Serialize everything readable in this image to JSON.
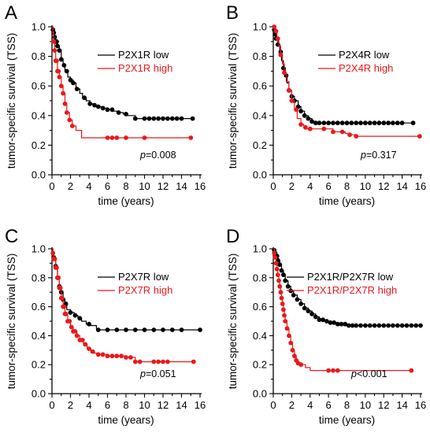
{
  "colors": {
    "low": "#000000",
    "high": "#e8191c"
  },
  "chart_data": [
    {
      "type": "line",
      "panel": "A",
      "xlabel": "time (years)",
      "ylabel": "tumor-specific survival (TSS)",
      "xlim": [
        0,
        16
      ],
      "ylim": [
        0,
        1
      ],
      "xticks": [
        "0",
        "2",
        "4",
        "6",
        "8",
        "10",
        "12",
        "14",
        "16"
      ],
      "yticks": [
        "0.0",
        "0.2",
        "0.4",
        "0.6",
        "0.8",
        "1.0"
      ],
      "annotation": {
        "p_label": "p",
        "p_value": "=0.008"
      },
      "legend_position": "top-right",
      "series": [
        {
          "name": "P2X1R low",
          "color": "#000000",
          "x": [
            0,
            0.1,
            0.2,
            0.3,
            0.4,
            0.6,
            0.8,
            1.0,
            1.2,
            1.4,
            1.7,
            2.0,
            2.3,
            2.6,
            3.0,
            3.3,
            3.7,
            4.1,
            4.5,
            5.0,
            5.5,
            6.0,
            6.6,
            7.2,
            7.7,
            8.2,
            9.0,
            10,
            11,
            12,
            13,
            14,
            15.2
          ],
          "y": [
            1.0,
            0.98,
            0.96,
            0.93,
            0.9,
            0.87,
            0.84,
            0.78,
            0.74,
            0.7,
            0.66,
            0.64,
            0.62,
            0.58,
            0.55,
            0.52,
            0.5,
            0.48,
            0.47,
            0.46,
            0.45,
            0.44,
            0.43,
            0.42,
            0.41,
            0.4,
            0.38,
            0.38,
            0.38,
            0.38,
            0.38,
            0.38,
            0.38
          ],
          "markers": [
            0.1,
            0.2,
            0.3,
            0.4,
            0.5,
            0.6,
            0.8,
            1.0,
            1.3,
            1.6,
            2.0,
            2.3,
            2.7,
            3.5,
            4.1,
            4.6,
            5.0,
            5.5,
            6.0,
            6.5,
            7.2,
            8.0,
            9.0,
            10,
            10.5,
            11,
            11.5,
            12,
            12.5,
            13,
            13.5,
            14,
            15.2
          ]
        },
        {
          "name": "P2X1R high",
          "color": "#e8191c",
          "x": [
            0,
            0.1,
            0.2,
            0.3,
            0.4,
            0.6,
            0.8,
            1.0,
            1.2,
            1.4,
            1.6,
            1.9,
            2.2,
            2.6,
            3.2,
            6.0,
            6.5,
            15
          ],
          "y": [
            1.0,
            0.96,
            0.9,
            0.84,
            0.77,
            0.7,
            0.66,
            0.6,
            0.55,
            0.48,
            0.42,
            0.37,
            0.33,
            0.3,
            0.25,
            0.25,
            0.25,
            0.25
          ],
          "markers": [
            0.2,
            0.3,
            0.4,
            0.5,
            0.6,
            0.7,
            0.8,
            1.0,
            1.2,
            1.4,
            1.6,
            1.9,
            2.2,
            6.0,
            6.5,
            7.0,
            8.0,
            10,
            15
          ]
        }
      ]
    },
    {
      "type": "line",
      "panel": "B",
      "xlabel": "time (years)",
      "ylabel": "tumor-specific survival (TSS)",
      "xlim": [
        0,
        16
      ],
      "ylim": [
        0,
        1
      ],
      "xticks": [
        "0",
        "2",
        "4",
        "6",
        "8",
        "10",
        "12",
        "14",
        "16"
      ],
      "yticks": [
        "0.0",
        "0.2",
        "0.4",
        "0.6",
        "0.8",
        "1.0"
      ],
      "annotation": {
        "p_label": "p",
        "p_value": "=0.317"
      },
      "legend_position": "top-right",
      "series": [
        {
          "name": "P2X4R low",
          "color": "#000000",
          "x": [
            0,
            0.1,
            0.2,
            0.3,
            0.5,
            0.7,
            0.9,
            1.1,
            1.3,
            1.5,
            1.7,
            2.0,
            2.3,
            2.7,
            3.0,
            3.4,
            3.8,
            4.2,
            4.6,
            5.0,
            6,
            8,
            10,
            12,
            14,
            15.2
          ],
          "y": [
            1.0,
            0.98,
            0.95,
            0.92,
            0.88,
            0.83,
            0.77,
            0.72,
            0.67,
            0.62,
            0.57,
            0.53,
            0.5,
            0.46,
            0.43,
            0.4,
            0.38,
            0.36,
            0.35,
            0.35,
            0.35,
            0.35,
            0.35,
            0.35,
            0.35,
            0.35
          ],
          "markers": [
            0.1,
            0.2,
            0.3,
            0.5,
            0.8,
            1.1,
            1.4,
            1.7,
            2.0,
            2.3,
            2.7,
            3.0,
            3.4,
            3.8,
            4.2,
            4.6,
            5.0,
            5.5,
            6.0,
            6.5,
            7.0,
            7.5,
            8.0,
            8.5,
            9.0,
            9.5,
            10,
            10.5,
            11,
            11.5,
            12,
            12.5,
            13,
            13.5,
            14,
            15.2
          ]
        },
        {
          "name": "P2X4R high",
          "color": "#e8191c",
          "x": [
            0,
            0.2,
            0.4,
            0.6,
            0.8,
            1.0,
            1.2,
            1.4,
            1.7,
            2.0,
            2.3,
            2.6,
            3.0,
            3.3,
            3.6,
            4.0,
            5.5,
            6.5,
            7.0,
            7.8,
            8.3,
            9.0,
            16
          ],
          "y": [
            1.0,
            0.97,
            0.92,
            0.87,
            0.81,
            0.75,
            0.69,
            0.63,
            0.57,
            0.5,
            0.44,
            0.38,
            0.34,
            0.32,
            0.31,
            0.31,
            0.31,
            0.29,
            0.29,
            0.28,
            0.27,
            0.26,
            0.26
          ],
          "markers": [
            0.1,
            0.3,
            0.5,
            0.8,
            1.2,
            1.7,
            2.0,
            2.5,
            3.0,
            3.5,
            4.0,
            5.5,
            6.5,
            7.5,
            8.3,
            9.0,
            15.9
          ]
        }
      ]
    },
    {
      "type": "line",
      "panel": "C",
      "xlabel": "time (years)",
      "ylabel": "tumor-specific survival (TSS)",
      "xlim": [
        0,
        16
      ],
      "ylim": [
        0,
        1
      ],
      "xticks": [
        "0",
        "2",
        "4",
        "6",
        "8",
        "10",
        "12",
        "14",
        "16"
      ],
      "yticks": [
        "0.0",
        "0.2",
        "0.4",
        "0.6",
        "0.8",
        "1.0"
      ],
      "annotation": {
        "p_label": "p",
        "p_value": "=0.051"
      },
      "legend_position": "top-right",
      "series": [
        {
          "name": "P2X7R low",
          "color": "#000000",
          "x": [
            0,
            0.1,
            0.2,
            0.4,
            0.6,
            0.8,
            1.0,
            1.2,
            1.4,
            1.6,
            2.0,
            2.4,
            2.8,
            3.2,
            3.7,
            4.2,
            4.8,
            5.0,
            6,
            8,
            10,
            12,
            14,
            16
          ],
          "y": [
            1.0,
            0.98,
            0.94,
            0.88,
            0.8,
            0.74,
            0.7,
            0.65,
            0.62,
            0.58,
            0.56,
            0.54,
            0.52,
            0.5,
            0.48,
            0.47,
            0.45,
            0.44,
            0.44,
            0.44,
            0.44,
            0.44,
            0.44,
            0.44
          ],
          "markers": [
            0.2,
            0.4,
            0.6,
            0.8,
            1.0,
            1.2,
            1.5,
            2.0,
            2.5,
            3.0,
            4.0,
            5.0,
            6.0,
            7.0,
            8.0,
            9.0,
            10,
            11,
            12,
            13,
            14,
            16
          ]
        },
        {
          "name": "P2X7R high",
          "color": "#e8191c",
          "x": [
            0,
            0.1,
            0.2,
            0.4,
            0.6,
            0.8,
            1.0,
            1.2,
            1.4,
            1.7,
            2.0,
            2.3,
            2.7,
            3.0,
            3.4,
            3.8,
            4.2,
            4.6,
            5.0,
            5.5,
            6.0,
            7.0,
            8.0,
            8.7,
            9.0,
            15.3
          ],
          "y": [
            1.0,
            0.97,
            0.93,
            0.87,
            0.8,
            0.73,
            0.66,
            0.6,
            0.55,
            0.5,
            0.46,
            0.43,
            0.4,
            0.37,
            0.34,
            0.31,
            0.29,
            0.28,
            0.27,
            0.27,
            0.26,
            0.26,
            0.25,
            0.25,
            0.22,
            0.22
          ],
          "markers": [
            0.1,
            0.2,
            0.3,
            0.4,
            0.5,
            0.6,
            0.7,
            0.8,
            0.9,
            1.0,
            1.1,
            1.2,
            1.3,
            1.4,
            1.5,
            1.7,
            1.9,
            2.1,
            2.3,
            2.5,
            2.7,
            3.0,
            3.3,
            3.6,
            4.0,
            4.4,
            5.0,
            5.5,
            6.0,
            6.5,
            7.0,
            7.5,
            8.0,
            8.5,
            9.0,
            9.5,
            11,
            11.5,
            12,
            12.5,
            15.3
          ]
        }
      ]
    },
    {
      "type": "line",
      "panel": "D",
      "xlabel": "time (years)",
      "ylabel": "tumor-specific survival (TSS)",
      "xlim": [
        0,
        16
      ],
      "ylim": [
        0,
        1
      ],
      "xticks": [
        "0",
        "2",
        "4",
        "6",
        "8",
        "10",
        "12",
        "14",
        "16"
      ],
      "yticks": [
        "0.0",
        "0.2",
        "0.4",
        "0.6",
        "0.8",
        "1.0"
      ],
      "annotation": {
        "p_label": "p",
        "p_value": "<0.001"
      },
      "legend_position": "top-right",
      "series": [
        {
          "name": "P2X1R/P2X7R low",
          "color": "#000000",
          "x": [
            0,
            0.1,
            0.2,
            0.3,
            0.5,
            0.7,
            0.9,
            1.1,
            1.3,
            1.6,
            1.9,
            2.2,
            2.6,
            3.0,
            3.4,
            3.8,
            4.2,
            4.6,
            5.0,
            5.5,
            6.0,
            7.0,
            8.0,
            10,
            12,
            14,
            16
          ],
          "y": [
            1.0,
            0.99,
            0.97,
            0.95,
            0.92,
            0.89,
            0.85,
            0.82,
            0.78,
            0.74,
            0.71,
            0.68,
            0.65,
            0.62,
            0.59,
            0.57,
            0.55,
            0.53,
            0.51,
            0.5,
            0.49,
            0.48,
            0.47,
            0.47,
            0.47,
            0.47,
            0.47
          ],
          "markers": [
            0.1,
            0.2,
            0.3,
            0.4,
            0.5,
            0.7,
            0.9,
            1.1,
            1.3,
            1.6,
            1.9,
            2.2,
            2.6,
            3.0,
            3.4,
            3.8,
            4.2,
            4.6,
            5.0,
            5.4,
            5.8,
            6.2,
            6.6,
            7.0,
            7.4,
            7.8,
            8.2,
            8.6,
            9.0,
            9.5,
            10,
            10.5,
            11,
            11.5,
            12,
            12.5,
            13,
            13.5,
            14,
            14.5,
            15,
            15.5,
            16
          ]
        },
        {
          "name": "P2X1R/P2X7R high",
          "color": "#e8191c",
          "x": [
            0,
            0.1,
            0.2,
            0.3,
            0.4,
            0.5,
            0.6,
            0.7,
            0.8,
            0.9,
            1.0,
            1.1,
            1.2,
            1.3,
            1.5,
            1.7,
            1.9,
            2.1,
            2.3,
            2.5,
            2.7,
            3.0,
            3.5,
            4.0,
            15
          ],
          "y": [
            1.0,
            0.97,
            0.94,
            0.9,
            0.86,
            0.82,
            0.78,
            0.74,
            0.7,
            0.66,
            0.62,
            0.58,
            0.54,
            0.5,
            0.45,
            0.4,
            0.35,
            0.3,
            0.26,
            0.23,
            0.21,
            0.2,
            0.18,
            0.16,
            0.16
          ],
          "markers": [
            0.1,
            0.2,
            0.3,
            0.4,
            0.5,
            0.6,
            0.7,
            0.8,
            0.9,
            1.0,
            1.1,
            1.2,
            1.3,
            1.5,
            1.7,
            1.9,
            2.1,
            2.3,
            2.5,
            2.7,
            3.0,
            6.0,
            6.5,
            7.0,
            15
          ]
        }
      ]
    }
  ]
}
